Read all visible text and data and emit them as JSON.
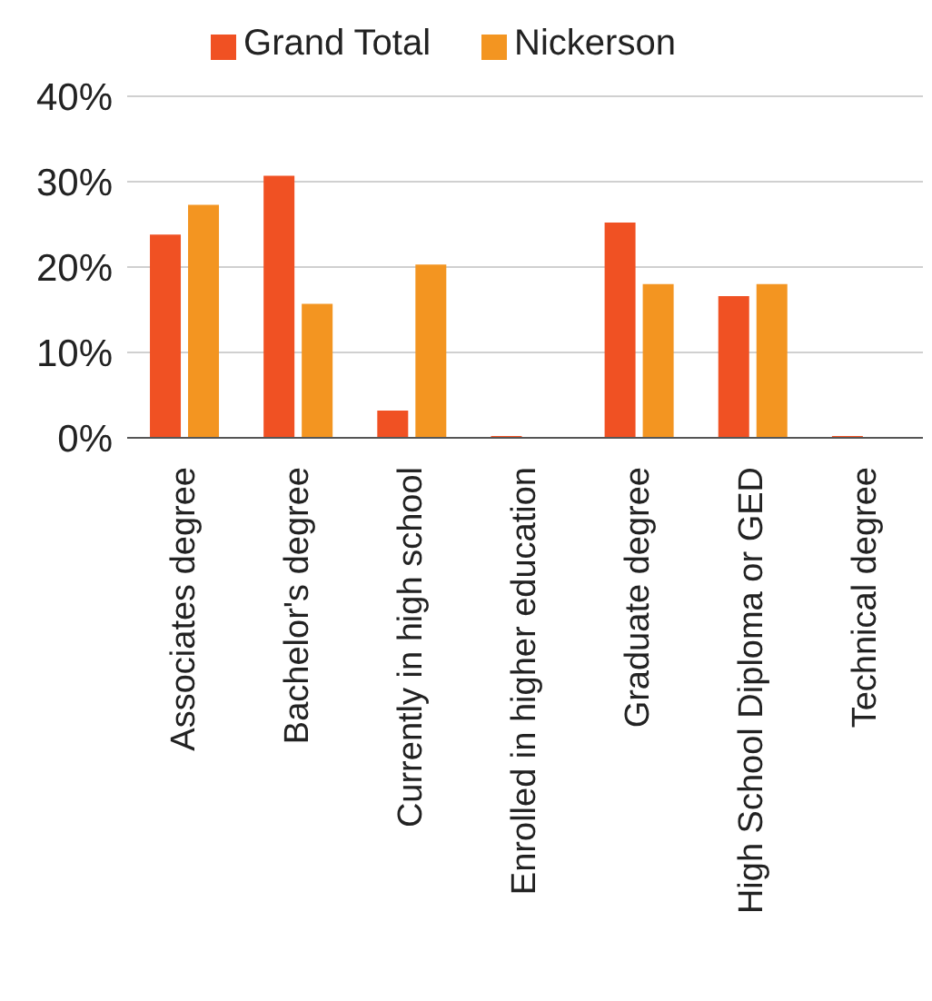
{
  "chart_data": {
    "type": "bar",
    "categories": [
      "Associates degree",
      "Bachelor's degree",
      "Currently in high school",
      "Enrolled in higher education",
      "Graduate degree",
      "High School Diploma or GED",
      "Technical degree"
    ],
    "series": [
      {
        "name": "Grand Total",
        "color": "#f05123",
        "values": [
          23.8,
          30.7,
          3.2,
          0.2,
          25.2,
          16.6,
          0.2
        ]
      },
      {
        "name": "Nickerson",
        "color": "#f39521",
        "values": [
          27.3,
          15.7,
          20.3,
          0,
          18.0,
          18.0,
          0
        ]
      }
    ],
    "ylim": [
      0,
      40
    ],
    "yticks": [
      {
        "value": 0,
        "label": "0%"
      },
      {
        "value": 10,
        "label": "10%"
      },
      {
        "value": 20,
        "label": "20%"
      },
      {
        "value": 30,
        "label": "30%"
      },
      {
        "value": 40,
        "label": "40%"
      }
    ],
    "grid": "y",
    "legend": "top"
  }
}
